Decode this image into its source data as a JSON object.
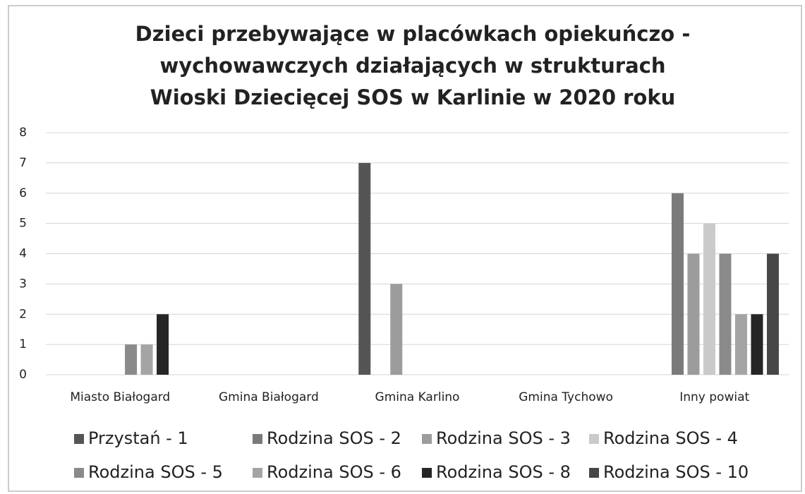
{
  "chart_data": {
    "type": "bar",
    "title": [
      "Dzieci przebywające w placówkach opiekuńczo -",
      "wychowawczych działających w strukturach",
      "Wioski Dziecięcej  SOS w Karlinie w 2020 roku"
    ],
    "categories": [
      "Miasto Białogard",
      "Gmina Białogard",
      "Gmina Karlino",
      "Gmina Tychowo",
      "Inny powiat"
    ],
    "series": [
      {
        "name": "Przystań - 1",
        "color": "#555555",
        "values": [
          0,
          0,
          7,
          0,
          0
        ]
      },
      {
        "name": "Rodzina SOS - 2",
        "color": "#7a7a7a",
        "values": [
          0,
          0,
          0,
          0,
          6
        ]
      },
      {
        "name": "Rodzina SOS - 3",
        "color": "#9c9c9c",
        "values": [
          0,
          0,
          3,
          0,
          4
        ]
      },
      {
        "name": "Rodzina SOS - 4",
        "color": "#cacaca",
        "values": [
          0,
          0,
          0,
          0,
          5
        ]
      },
      {
        "name": "Rodzina SOS - 5",
        "color": "#8a8a8a",
        "values": [
          1,
          0,
          0,
          0,
          4
        ]
      },
      {
        "name": "Rodzina SOS - 6",
        "color": "#a4a4a4",
        "values": [
          1,
          0,
          0,
          0,
          2
        ]
      },
      {
        "name": "Rodzina SOS - 8",
        "color": "#262626",
        "values": [
          2,
          0,
          0,
          0,
          2
        ]
      },
      {
        "name": "Rodzina SOS - 10",
        "color": "#474747",
        "values": [
          0,
          0,
          0,
          0,
          4
        ]
      }
    ],
    "ylim": [
      0,
      8
    ],
    "yticks": [
      0,
      1,
      2,
      3,
      4,
      5,
      6,
      7,
      8
    ],
    "grid": true,
    "legend": "bottom"
  }
}
